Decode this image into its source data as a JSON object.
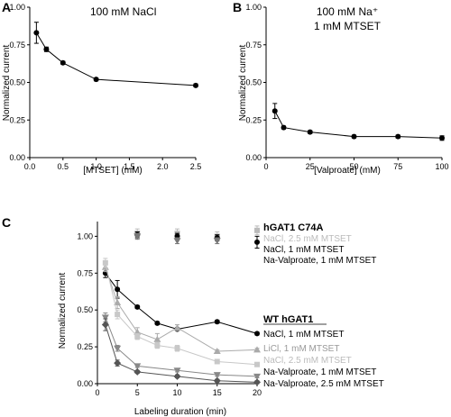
{
  "chart_data": [
    {
      "panel": "A",
      "type": "line",
      "title": "100 mM NaCl",
      "xlabel": "[MTSET] (mM)",
      "ylabel": "Normalized current",
      "xlim": [
        0,
        2.5
      ],
      "ylim": [
        0,
        1.0
      ],
      "xticks": [
        "0.0",
        "0.5",
        "1.0",
        "1.5",
        "2.0",
        "2.5"
      ],
      "yticks": [
        "0.00",
        "0.25",
        "0.50",
        "0.75",
        "1.00"
      ],
      "x": [
        0.1,
        0.25,
        0.5,
        1.0,
        2.5
      ],
      "y": [
        0.83,
        0.72,
        0.63,
        0.52,
        0.48
      ],
      "err": [
        0.07,
        0.015,
        0.01,
        0.01,
        0.01
      ]
    },
    {
      "panel": "B",
      "type": "line",
      "title": "100 mM Na⁺",
      "subtitle": "1 mM MTSET",
      "xlabel": "[Valproate] (mM)",
      "ylabel": "Normalized current",
      "xlim": [
        0,
        100
      ],
      "ylim": [
        0,
        1.0
      ],
      "xticks": [
        "0",
        "25",
        "50",
        "75",
        "100"
      ],
      "yticks": [
        "0.00",
        "0.25",
        "0.50",
        "0.75",
        "1.00"
      ],
      "x": [
        5,
        10,
        25,
        50,
        75,
        100
      ],
      "y": [
        0.31,
        0.2,
        0.17,
        0.14,
        0.14,
        0.13
      ],
      "err": [
        0.05,
        0.01,
        0.01,
        0.01,
        0.01,
        0.015
      ]
    },
    {
      "panel": "C",
      "type": "line",
      "xlabel": "Labeling duration (min)",
      "ylabel": "Normalized current",
      "xlim": [
        0,
        20
      ],
      "ylim": [
        0,
        1.1
      ],
      "xticks": [
        "0",
        "5",
        "10",
        "15",
        "20"
      ],
      "yticks": [
        "0.00",
        "0.25",
        "0.50",
        "0.75",
        "1.00"
      ],
      "group_labels": [
        "hGAT1 C74A",
        "WT hGAT1"
      ],
      "series": [
        {
          "name": "NaCl, 2.5 mM MTSET",
          "group": "hGAT1 C74A",
          "color": "#bbbbbb",
          "marker": "square",
          "connect": false,
          "x": [
            5,
            10,
            15,
            20
          ],
          "y": [
            1.02,
            1.02,
            1.0,
            1.04
          ],
          "err": [
            0.03,
            0.03,
            0.03,
            0.03
          ]
        },
        {
          "name": "NaCl, 1 mM MTSET",
          "group": "hGAT1 C74A",
          "color": "#000000",
          "marker": "circle",
          "connect": false,
          "x": [
            5,
            10,
            15,
            20
          ],
          "y": [
            1.01,
            1.0,
            0.99,
            0.96
          ],
          "err": [
            0.02,
            0.02,
            0.02,
            0.04
          ]
        },
        {
          "name": "Na-Valproate, 1 mM MTSET",
          "group": "hGAT1 C74A",
          "color": "#777777",
          "marker": "triangle-down",
          "connect": false,
          "x": [
            5,
            10,
            15
          ],
          "y": [
            1.0,
            0.97,
            0.97
          ],
          "err": [
            0.02,
            0.02,
            0.02
          ]
        },
        {
          "name": "NaCl, 1 mM MTSET",
          "group": "WT hGAT1",
          "color": "#000000",
          "marker": "circle",
          "connect": true,
          "x": [
            1,
            2.5,
            5,
            7.5,
            10,
            15,
            20
          ],
          "y": [
            0.75,
            0.64,
            0.52,
            0.41,
            0.37,
            0.42,
            0.34
          ],
          "err": [
            0.03,
            0.06,
            0.01,
            0.01,
            0.01,
            0.01,
            0.01
          ]
        },
        {
          "name": "LiCl, 1 mM MTSET",
          "group": "WT hGAT1",
          "color": "#aaaaaa",
          "marker": "triangle-up",
          "connect": true,
          "x": [
            1,
            2.5,
            5,
            7.5,
            10,
            15,
            20
          ],
          "y": [
            0.79,
            0.55,
            0.35,
            0.3,
            0.38,
            0.22,
            0.23
          ],
          "err": [
            0.03,
            0.04,
            0.03,
            0.04,
            0.02,
            0.01,
            0.01
          ]
        },
        {
          "name": "NaCl, 2.5 mM MTSET",
          "group": "WT hGAT1",
          "color": "#c8c8c8",
          "marker": "square",
          "connect": true,
          "x": [
            1,
            2.5,
            5,
            7.5,
            10,
            15,
            20
          ],
          "y": [
            0.82,
            0.47,
            0.32,
            0.26,
            0.24,
            0.15,
            0.13
          ],
          "err": [
            0.03,
            0.03,
            0.02,
            0.02,
            0.02,
            0.01,
            0.01
          ]
        },
        {
          "name": "Na-Valproate, 1 mM MTSET",
          "group": "WT hGAT1",
          "color": "#888888",
          "marker": "triangle-down",
          "connect": true,
          "x": [
            1,
            2.5,
            5,
            10,
            15,
            20
          ],
          "y": [
            0.45,
            0.24,
            0.12,
            0.09,
            0.06,
            0.05
          ],
          "err": [
            0.03,
            0.02,
            0.01,
            0.01,
            0.01,
            0.01
          ]
        },
        {
          "name": "Na-Valproate, 2.5 mM MTSET",
          "group": "WT hGAT1",
          "color": "#555555",
          "marker": "diamond",
          "connect": true,
          "x": [
            1,
            2.5,
            5,
            10,
            15,
            20
          ],
          "y": [
            0.4,
            0.14,
            0.08,
            0.05,
            0.02,
            0.01
          ],
          "err": [
            0.04,
            0.02,
            0.01,
            0.01,
            0.01,
            0.01
          ]
        }
      ]
    }
  ]
}
